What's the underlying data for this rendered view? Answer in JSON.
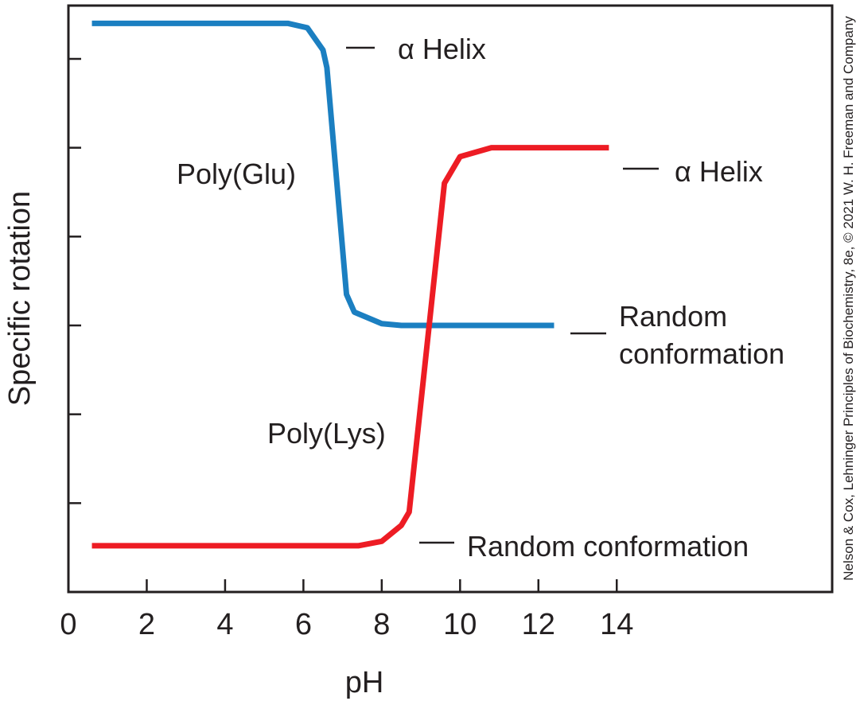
{
  "chart_data": {
    "type": "line",
    "xlabel": "pH",
    "ylabel": "Specific rotation",
    "xlim": [
      0,
      19.5
    ],
    "ylim": [
      0,
      6.6
    ],
    "x_ticks": [
      0,
      2,
      4,
      6,
      8,
      10,
      12,
      14
    ],
    "x_tick_labels": [
      "0",
      "2",
      "4",
      "6",
      "8",
      "10",
      "12",
      "14"
    ],
    "y_ticks": [
      1,
      2,
      3,
      4,
      5,
      6
    ],
    "y_tick_labels_shown": false,
    "grid": false,
    "series": [
      {
        "name": "Poly(Glu)",
        "color": "#1b7fc1",
        "points": [
          [
            0.6,
            6.4
          ],
          [
            5.6,
            6.4
          ],
          [
            6.1,
            6.35
          ],
          [
            6.5,
            6.1
          ],
          [
            6.6,
            5.9
          ],
          [
            7.1,
            3.35
          ],
          [
            7.3,
            3.15
          ],
          [
            8.0,
            3.02
          ],
          [
            8.5,
            3.0
          ],
          [
            12.4,
            3.0
          ]
        ],
        "labels": [
          {
            "text": "Poly(Glu)"
          },
          {
            "text": "α Helix"
          },
          {
            "text": "Random"
          },
          {
            "text": "conformation"
          }
        ]
      },
      {
        "name": "Poly(Lys)",
        "color": "#ed1c24",
        "points": [
          [
            0.6,
            0.52
          ],
          [
            7.4,
            0.52
          ],
          [
            8.0,
            0.57
          ],
          [
            8.5,
            0.75
          ],
          [
            8.7,
            0.9
          ],
          [
            9.6,
            4.6
          ],
          [
            10.0,
            4.9
          ],
          [
            10.8,
            5.0
          ],
          [
            13.8,
            5.0
          ]
        ],
        "labels": [
          {
            "text": "Poly(Lys)"
          },
          {
            "text": "α Helix"
          },
          {
            "text": "Random conformation"
          }
        ]
      }
    ]
  },
  "credit": {
    "text": "Nelson & Cox, Lehninger Principles of Biochemistry, 8e, © 2021 W. H. Freeman and Company"
  }
}
